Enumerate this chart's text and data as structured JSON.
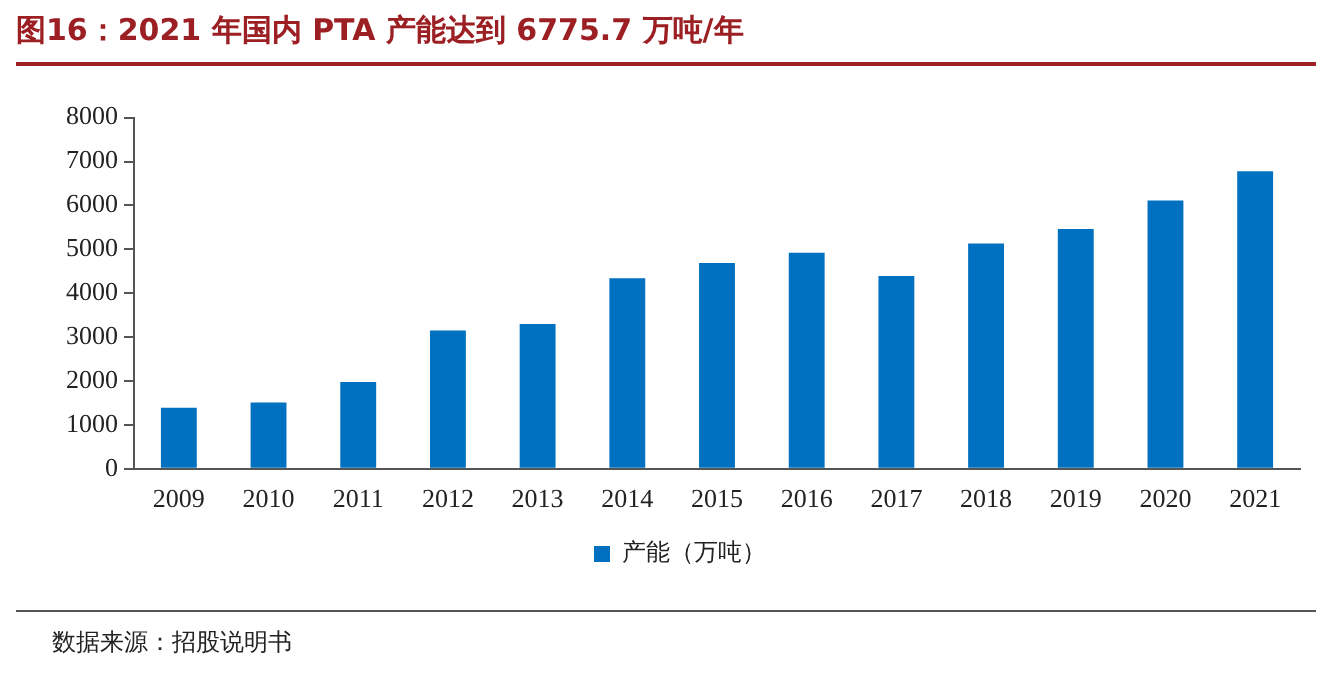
{
  "chart_data": {
    "type": "bar",
    "title": "图16：2021 年国内 PTA 产能达到 6775.7 万吨/年",
    "categories": [
      "2009",
      "2010",
      "2011",
      "2012",
      "2013",
      "2014",
      "2015",
      "2016",
      "2017",
      "2018",
      "2019",
      "2020",
      "2021"
    ],
    "series": [
      {
        "name": "产能（万吨）",
        "color": "#0070c0",
        "values": [
          1390,
          1510,
          1980,
          3150,
          3300,
          4340,
          4690,
          4920,
          4390,
          5130,
          5460,
          6110,
          6775.7
        ]
      }
    ],
    "ylim": [
      0,
      8000
    ],
    "yticks": [
      0,
      1000,
      2000,
      3000,
      4000,
      5000,
      6000,
      7000,
      8000
    ],
    "grid": false,
    "legend": "bottom",
    "annotations": [
      "数据来源：招股说明书"
    ]
  }
}
